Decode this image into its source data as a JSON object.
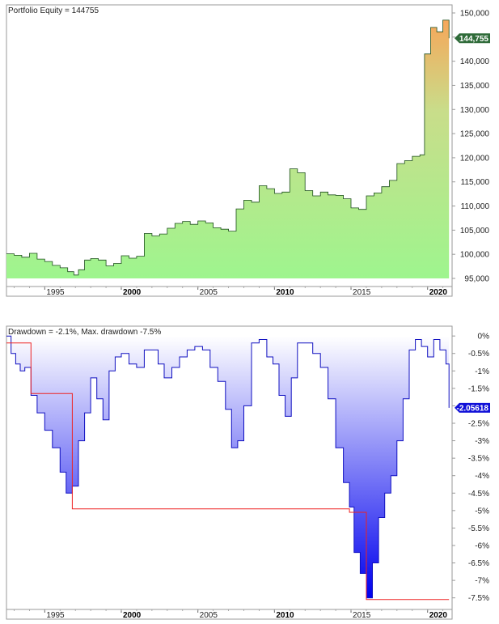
{
  "chart_data": [
    {
      "type": "area",
      "title": "Portfolio Equity = 144755",
      "ylim": [
        95000,
        150000
      ],
      "x_ticks": [
        "1995",
        "2000",
        "2005",
        "2010",
        "2015",
        "2020"
      ],
      "x_ticks_bold": [
        "2000",
        "2010",
        "2020"
      ],
      "y_ticks": [
        "150,000",
        "145,000",
        "140,000",
        "135,000",
        "130,000",
        "125,000",
        "120,000",
        "115,000",
        "110,000",
        "105,000",
        "100,000",
        "95,000"
      ],
      "y_tick_values": [
        150000,
        145000,
        140000,
        135000,
        130000,
        125000,
        120000,
        115000,
        110000,
        105000,
        100000,
        95000
      ],
      "last_value": 144755,
      "last_value_label": "144,755",
      "badge_color": "#2f6b39",
      "gradient_colors": [
        "#f6a75a",
        "#c9dd8a",
        "#9ef58e"
      ],
      "x": [
        1992.5,
        1993,
        1993.5,
        1994,
        1994.5,
        1995,
        1995.5,
        1996,
        1996.5,
        1996.9,
        1997.2,
        1997.6,
        1998,
        1998.5,
        1999,
        1999.5,
        2000,
        2000.5,
        2001,
        2001.5,
        2002,
        2002.5,
        2003,
        2003.5,
        2004,
        2004.5,
        2005,
        2005.5,
        2006,
        2006.5,
        2007,
        2007.5,
        2008,
        2008.5,
        2009,
        2009.5,
        2010,
        2010.5,
        2011,
        2011.5,
        2012,
        2012.5,
        2013,
        2013.5,
        2014,
        2014.5,
        2015,
        2015.5,
        2016,
        2016.5,
        2017,
        2017.5,
        2018,
        2018.5,
        2019,
        2019.5,
        2019.8,
        2020.2,
        2020.6,
        2021,
        2021.4
      ],
      "values": [
        100100,
        99800,
        99400,
        100200,
        99000,
        98500,
        97700,
        97200,
        96400,
        95700,
        96800,
        98800,
        99100,
        98800,
        97600,
        98100,
        99700,
        99200,
        99600,
        104300,
        103800,
        104200,
        105400,
        106400,
        106800,
        106200,
        106900,
        106500,
        105500,
        105200,
        104800,
        109400,
        111200,
        110800,
        114200,
        113600,
        112600,
        112900,
        117700,
        116900,
        113200,
        112100,
        112900,
        112300,
        112200,
        111500,
        109600,
        109300,
        112100,
        112700,
        114000,
        115300,
        118800,
        119400,
        120300,
        120600,
        141500,
        147000,
        146100,
        148500,
        144755
      ]
    },
    {
      "type": "area",
      "title": "Drawdown = -2.1%, Max. drawdown -7.5%",
      "ylim": [
        -7.6,
        0.05
      ],
      "x_ticks": [
        "1995",
        "2000",
        "2005",
        "2010",
        "2015",
        "2020"
      ],
      "x_ticks_bold": [
        "2000",
        "2010",
        "2020"
      ],
      "y_ticks": [
        "0%",
        "-0.5%",
        "-1%",
        "-1.5%",
        "-2%",
        "-2.5%",
        "-3%",
        "-3.5%",
        "-4%",
        "-4.5%",
        "-5%",
        "-5.5%",
        "-6%",
        "-6.5%",
        "-7%",
        "-7.5%"
      ],
      "y_tick_values": [
        0,
        -0.5,
        -1,
        -1.5,
        -2,
        -2.5,
        -3,
        -3.5,
        -4,
        -4.5,
        -5,
        -5.5,
        -6,
        -6.5,
        -7,
        -7.5
      ],
      "last_value": -2.05618,
      "last_value_label": "-2.05618",
      "badge_color": "#1010d8",
      "gradient_colors": [
        "#ffffff",
        "#0000ee"
      ],
      "max_drawdown_line_color": "#ee2222",
      "x": [
        1992.5,
        1992.8,
        1993.1,
        1993.4,
        1993.7,
        1994.1,
        1994.5,
        1995,
        1995.5,
        1996,
        1996.4,
        1996.8,
        1997.2,
        1997.6,
        1998,
        1998.4,
        1998.8,
        1999.2,
        1999.6,
        2000,
        2000.5,
        2001,
        2001.5,
        2002,
        2002.4,
        2002.8,
        2003.3,
        2003.8,
        2004.3,
        2004.8,
        2005.3,
        2005.8,
        2006.3,
        2006.8,
        2007.2,
        2007.6,
        2008,
        2008.5,
        2009,
        2009.5,
        2009.9,
        2010.3,
        2010.7,
        2011.1,
        2011.5,
        2012,
        2012.5,
        2013,
        2013.5,
        2014,
        2014.5,
        2014.9,
        2015.2,
        2015.6,
        2016,
        2016.4,
        2016.8,
        2017.2,
        2017.6,
        2018,
        2018.4,
        2018.8,
        2019.2,
        2019.6,
        2020,
        2020.4,
        2020.8,
        2021.2,
        2021.4
      ],
      "values": [
        0,
        -0.5,
        -0.8,
        -1.0,
        -0.9,
        -1.7,
        -2.2,
        -2.7,
        -3.2,
        -3.9,
        -4.5,
        -4.3,
        -3.0,
        -2.2,
        -1.2,
        -1.8,
        -2.4,
        -1.0,
        -0.6,
        -0.5,
        -0.8,
        -0.9,
        -0.4,
        -0.4,
        -0.8,
        -1.2,
        -0.9,
        -0.6,
        -0.4,
        -0.3,
        -0.4,
        -0.9,
        -1.3,
        -2.1,
        -3.2,
        -3.0,
        -2.0,
        -0.2,
        -0.1,
        -0.6,
        -0.8,
        -1.7,
        -2.3,
        -1.2,
        -0.2,
        -0.2,
        -0.5,
        -0.9,
        -1.8,
        -3.2,
        -4.2,
        -4.9,
        -6.2,
        -6.8,
        -7.5,
        -6.5,
        -5.2,
        -4.5,
        -4.0,
        -3.0,
        -1.8,
        -0.4,
        -0.1,
        -0.3,
        -0.6,
        -0.1,
        -0.4,
        -0.8,
        -2.05618
      ],
      "max_drawdown_x": [
        1992.5,
        1994.1,
        1994.1,
        1996.8,
        1996.8,
        2014.9,
        2014.9,
        2016,
        2016,
        2021.4
      ],
      "max_drawdown_values": [
        -0.2,
        -0.2,
        -1.65,
        -1.65,
        -4.95,
        -4.95,
        -5.05,
        -5.05,
        -7.55,
        -7.55
      ]
    }
  ]
}
